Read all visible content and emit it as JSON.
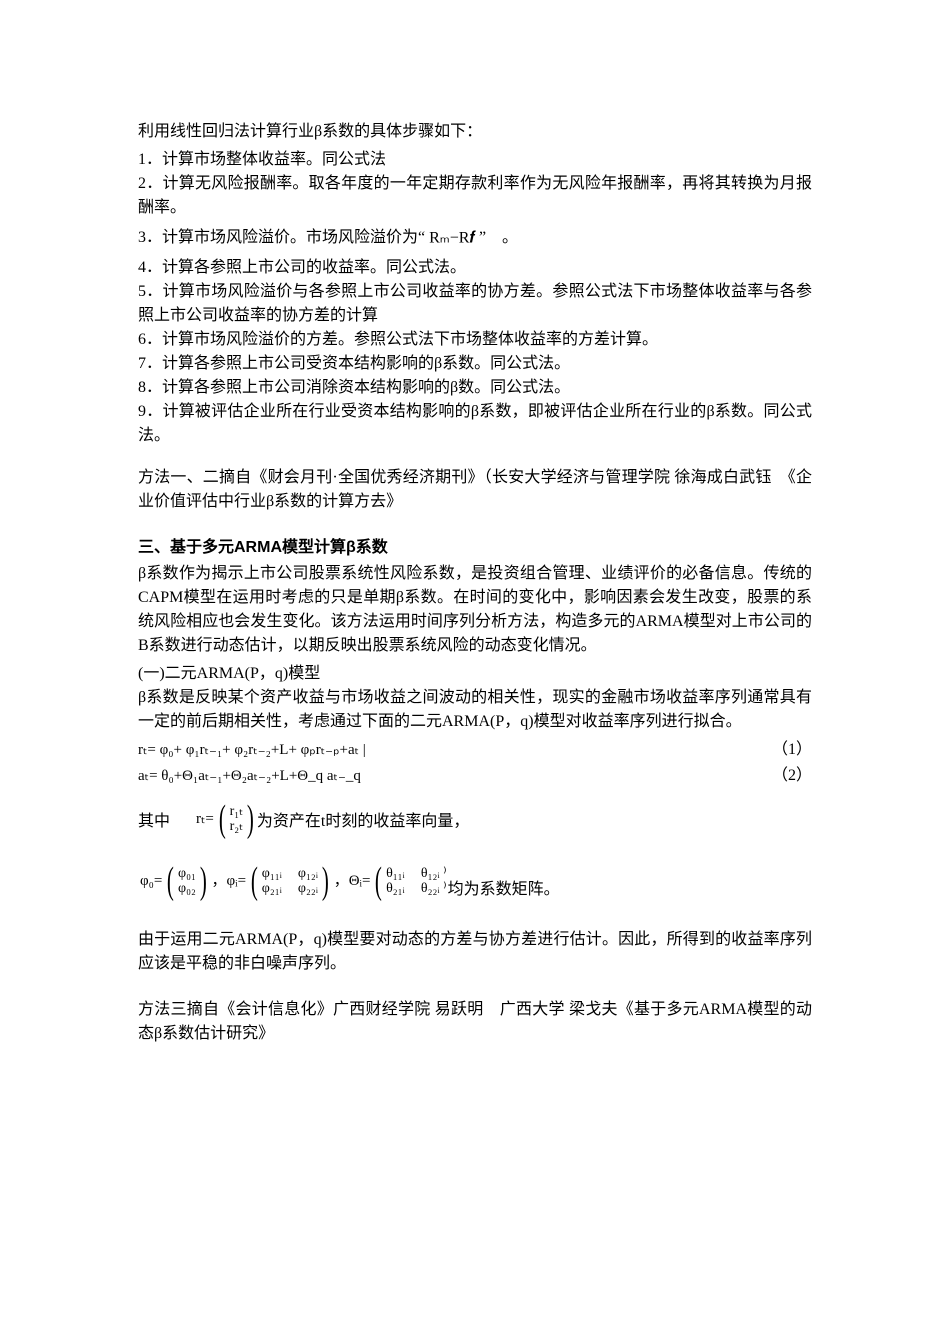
{
  "intro": "利用线性回归法计算行业β系数的具体步骤如下：",
  "steps": [
    "1．计算市场整体收益率。同公式法",
    "2．计算无风险报酬率。取各年度的一年定期存款利率作为无风险年报酬率，再将其转换为月报酬率。",
    "3．计算市场风险溢价。市场风险溢价为“",
    "4．计算各参照上市公司的收益率。同公式法。",
    "5．计算市场风险溢价与各参照上市公司收益率的协方差。参照公式法下市场整体收益率与各参照上市公司收益率的协方差的计算",
    "6．计算市场风险溢价的方差。参照公式法下市场整体收益率的方差计算。",
    "7．计算各参照上市公司受资本结构影响的β系数。同公式法。",
    "8．计算各参照上市公司消除资本结构影响的β数。同公式法。",
    "9．计算被评估企业所在行业受资本结构影响的β系数，即被评估企业所在行业的β系数。同公式法。"
  ],
  "formula_rm_rf": "Rₘ−R𝒇",
  "step3_tail": "”　。",
  "citation1": "方法一、二摘自《财会月刊·全国优秀经济期刊》（长安大学经济与管理学院  徐海成白武钰　《企业价值评估中行业β系数的计算方去》",
  "section3_title": "三、基于多元ARMA模型计算β系数",
  "section3_body": "β系数作为揭示上市公司股票系统性风险系数，是投资组合管理、业绩评价的必备信息。传统的CAPM模型在运用时考虑的只是单期β系数。在时间的变化中，影响因素会发生改变，股票的系统风险相应也会发生变化。该方法运用时间序列分析方法，构造多元的ARMA模型对上市公司的B系数进行动态估计，以期反映出股票系统风险的动态变化情况。",
  "subsection_a": "(一)二元ARMA(P，q)模型",
  "subsection_a_body": "β系数是反映某个资产收益与市场收益之间波动的相关性，现实的金融市场收益率序列通常具有一定的前后期相关性，考虑通过下面的二元ARMA(P，q)模型对收益率序列进行拟合。",
  "eq1": "rₜ= φ₀+ φ₁rₜ₋₁+ φ₂rₜ₋₂+L+ φₚrₜ₋ₚ+aₜ   |",
  "eq1_num": "（1）",
  "eq2": "aₜ= θ₀+Θ₁aₜ₋₁+Θ₂aₜ₋₂+L+Θ_q aₜ₋_q",
  "eq2_num": "（2）",
  "where_prefix": "其中",
  "vec_prefix": "rₜ=",
  "vec_r1": "r₁ₜ",
  "vec_r2": "r₂ₜ",
  "where_suffix": "为资产在t时刻的收益率向量，",
  "phi0_prefix": "φ₀=",
  "phi0_r1": "φ₀₁",
  "phi0_r2": "φ₀₂",
  "phii_prefix": "，φᵢ=",
  "phii_11": "φ₁₁ᵢ",
  "phii_12": "φ₁₂ᵢ",
  "phii_21": "φ₂₁ᵢ",
  "phii_22": "φ₂₂ᵢ",
  "thetai_prefix": "，Θᵢ=",
  "thetai_11": "θ₁₁ᵢ",
  "thetai_12": "θ₁₂ᵢ ⁾",
  "thetai_21": "θ₂₁ᵢ",
  "thetai_22": "θ₂₂ᵢ ⁾",
  "matrix_suffix": "均为系数矩阵。",
  "tail_para": "由于运用二元ARMA(P，q)模型要对动态的方差与协方差进行估计。因此，所得到的收益率序列应该是平稳的非白噪声序列。",
  "citation3": "方法三摘自《会计信息化》广西财经学院  易跃明　广西大学  梁戈夫《基于多元ARMA模型的动态β系数估计研究》"
}
